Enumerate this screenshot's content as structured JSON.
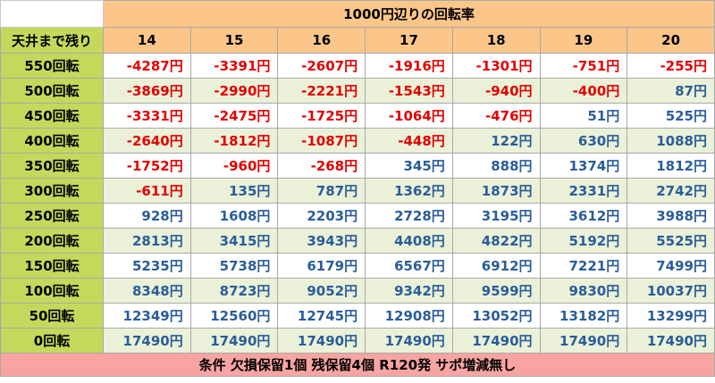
{
  "header": {
    "title": "1000円辺りの回転率",
    "row_header": "天井まで残り",
    "rates": [
      "14",
      "15",
      "16",
      "17",
      "18",
      "19",
      "20"
    ]
  },
  "rows": [
    {
      "label": "550回転",
      "values": [
        "-4287円",
        "-3391円",
        "-2607円",
        "-1916円",
        "-1301円",
        "-751円",
        "-255円"
      ]
    },
    {
      "label": "500回転",
      "values": [
        "-3869円",
        "-2990円",
        "-2221円",
        "-1543円",
        "-940円",
        "-400円",
        "87円"
      ]
    },
    {
      "label": "450回転",
      "values": [
        "-3331円",
        "-2475円",
        "-1725円",
        "-1064円",
        "-476円",
        "51円",
        "525円"
      ]
    },
    {
      "label": "400回転",
      "values": [
        "-2640円",
        "-1812円",
        "-1087円",
        "-448円",
        "122円",
        "630円",
        "1088円"
      ]
    },
    {
      "label": "350回転",
      "values": [
        "-1752円",
        "-960円",
        "-268円",
        "345円",
        "888円",
        "1374円",
        "1812円"
      ]
    },
    {
      "label": "300回転",
      "values": [
        "-611円",
        "135円",
        "787円",
        "1362円",
        "1873円",
        "2331円",
        "2742円"
      ]
    },
    {
      "label": "250回転",
      "values": [
        "928円",
        "1608円",
        "2203円",
        "2728円",
        "3195円",
        "3612円",
        "3988円"
      ]
    },
    {
      "label": "200回転",
      "values": [
        "2813円",
        "3415円",
        "3943円",
        "4408円",
        "4822円",
        "5192円",
        "5525円"
      ]
    },
    {
      "label": "150回転",
      "values": [
        "5235円",
        "5738円",
        "6179円",
        "6567円",
        "6912円",
        "7221円",
        "7499円"
      ]
    },
    {
      "label": "100回転",
      "values": [
        "8348円",
        "8723円",
        "9052円",
        "9342円",
        "9599円",
        "9830円",
        "10037円"
      ]
    },
    {
      "label": "50回転",
      "values": [
        "12349円",
        "12560円",
        "12745円",
        "12908円",
        "13052円",
        "13182円",
        "13299円"
      ]
    },
    {
      "label": "0回転",
      "values": [
        "17490円",
        "17490円",
        "17490円",
        "17490円",
        "17490円",
        "17490円",
        "17490円"
      ]
    }
  ],
  "footer": "条件 欠損保留1個 残保留4個 R120発 サポ増減無し",
  "colors": {
    "header_orange": "#fcc68a",
    "row_label_green": "#c6d85c",
    "footer_pink": "#f7a4a2",
    "negative_red": "#e20000",
    "positive_blue": "#2a5d9a",
    "alt_row_tint": "#eaf1d8"
  }
}
